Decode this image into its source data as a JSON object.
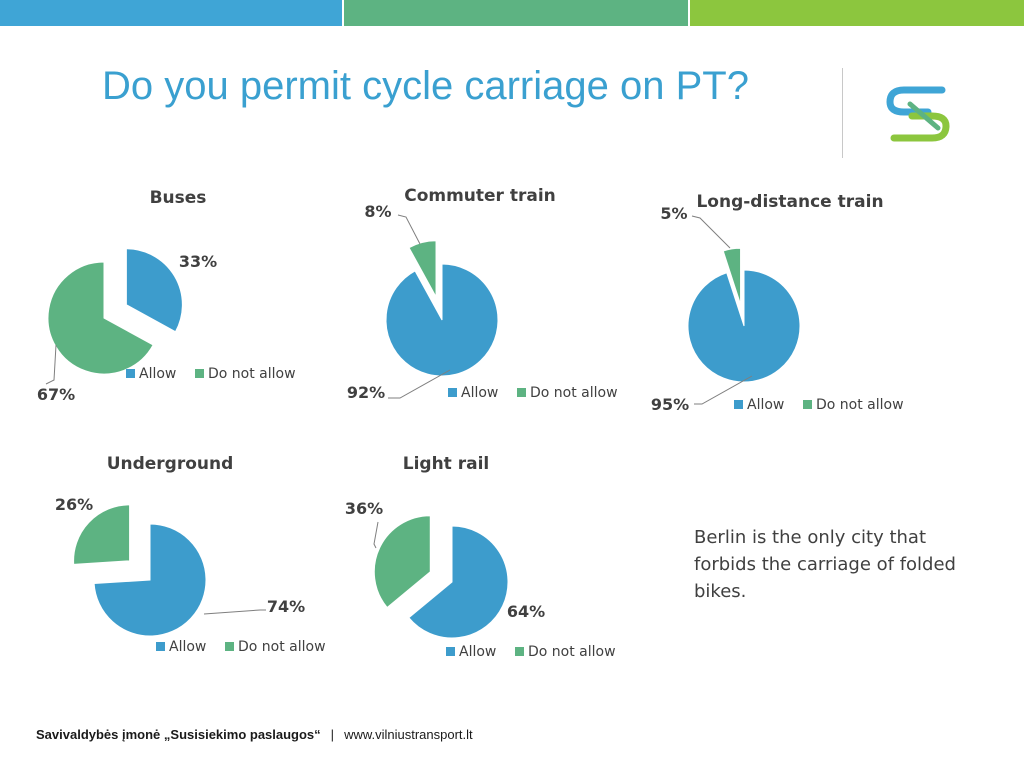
{
  "slide": {
    "title": "Do you permit cycle carriage on PT?",
    "note": "Berlin is the only city that forbids the carriage of folded bikes.",
    "footer": {
      "organization": "Savivaldybės įmonė „Susisiekimo paslaugos“",
      "separator": "|",
      "website": "www.vilniustransport.lt"
    }
  },
  "colors": {
    "allow": "#3d9ccc",
    "do_not_allow": "#5db382",
    "bar_blue": "#3fa5d6",
    "bar_green": "#5db382",
    "bar_lime": "#8cc63e",
    "title": "#3aa0d0"
  },
  "chart_data": [
    {
      "type": "pie",
      "title": "Buses",
      "categories": [
        "Allow",
        "Do not allow"
      ],
      "values": [
        33,
        67
      ],
      "labels": [
        "33%",
        "67%"
      ],
      "legend": "bottom",
      "exploded": true
    },
    {
      "type": "pie",
      "title": "Commuter train",
      "categories": [
        "Allow",
        "Do not allow"
      ],
      "values": [
        92,
        8
      ],
      "labels": [
        "92%",
        "8%"
      ],
      "legend": "bottom",
      "exploded": true
    },
    {
      "type": "pie",
      "title": "Long-distance train",
      "categories": [
        "Allow",
        "Do not allow"
      ],
      "values": [
        95,
        5
      ],
      "labels": [
        "95%",
        "5%"
      ],
      "legend": "bottom",
      "exploded": true
    },
    {
      "type": "pie",
      "title": "Underground",
      "categories": [
        "Allow",
        "Do not allow"
      ],
      "values": [
        74,
        26
      ],
      "labels": [
        "74%",
        "26%"
      ],
      "legend": "bottom",
      "exploded": true
    },
    {
      "type": "pie",
      "title": "Light rail",
      "categories": [
        "Allow",
        "Do not allow"
      ],
      "values": [
        64,
        36
      ],
      "labels": [
        "64%",
        "36%"
      ],
      "legend": "bottom",
      "exploded": true
    }
  ]
}
